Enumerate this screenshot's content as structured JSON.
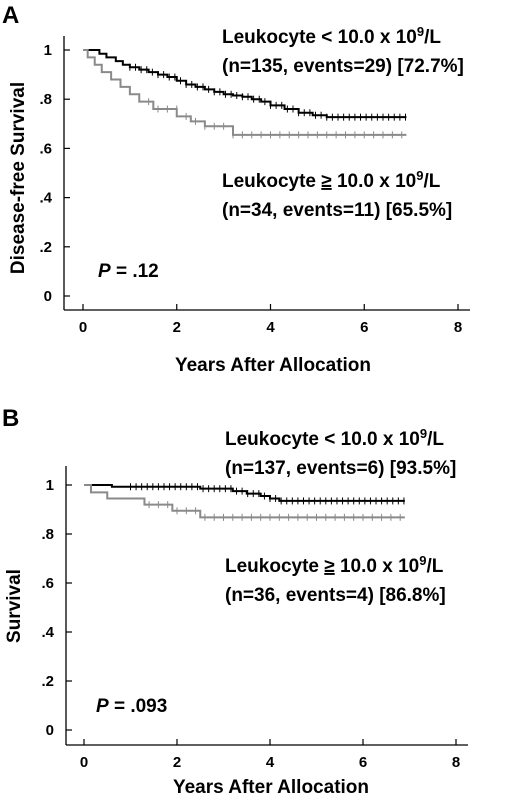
{
  "chart_data": [
    {
      "panel_label": "A",
      "type": "line",
      "step": true,
      "ylabel": "Disease-free Survival",
      "xlabel": "Years After Allocation",
      "xlim": [
        0,
        8
      ],
      "ylim": [
        0,
        1
      ],
      "x_ticks": [
        "0",
        "2",
        "4",
        "6",
        "8"
      ],
      "y_ticks": [
        "0",
        ".2",
        ".4",
        ".6",
        ".8",
        "1"
      ],
      "p_label": "P",
      "p_value": " = .12",
      "series": [
        {
          "label_line1_pre": "Leukocyte < 10.0 x 10",
          "label_sup": "9",
          "label_line1_post": "/L",
          "label_line2": "(n=135, events=29) [72.7%]",
          "color": "#000000",
          "x": [
            0,
            0.35,
            0.5,
            0.7,
            0.85,
            1.0,
            1.2,
            1.4,
            1.6,
            1.8,
            2.0,
            2.2,
            2.4,
            2.6,
            2.8,
            3.0,
            3.2,
            3.4,
            3.6,
            3.8,
            4.0,
            4.3,
            4.6,
            4.9,
            5.2,
            6.9
          ],
          "y": [
            1.0,
            0.985,
            0.97,
            0.955,
            0.94,
            0.93,
            0.92,
            0.91,
            0.9,
            0.89,
            0.875,
            0.86,
            0.85,
            0.84,
            0.83,
            0.82,
            0.815,
            0.81,
            0.8,
            0.79,
            0.775,
            0.76,
            0.745,
            0.735,
            0.727,
            0.727
          ]
        },
        {
          "label_line1_pre": "Leukocyte ",
          "label_geq": "≥",
          "label_line1_mid": " 10.0 x 10",
          "label_sup": "9",
          "label_line1_post": "/L",
          "label_line2": "(n=34, events=11) [65.5%]",
          "color": "#8a8a8a",
          "x": [
            0,
            0.1,
            0.25,
            0.4,
            0.6,
            0.8,
            1.0,
            1.2,
            1.5,
            2.0,
            2.3,
            2.6,
            3.2,
            6.9
          ],
          "y": [
            1.0,
            0.97,
            0.94,
            0.91,
            0.88,
            0.85,
            0.82,
            0.79,
            0.76,
            0.73,
            0.71,
            0.69,
            0.655,
            0.655
          ]
        }
      ]
    },
    {
      "panel_label": "B",
      "type": "line",
      "step": true,
      "ylabel": "Survival",
      "xlabel": "Years After Allocation",
      "xlim": [
        0,
        8
      ],
      "ylim": [
        0,
        1
      ],
      "x_ticks": [
        "0",
        "2",
        "4",
        "6",
        "8"
      ],
      "y_ticks": [
        "0",
        ".2",
        ".4",
        ".6",
        ".8",
        "1"
      ],
      "p_label": "P",
      "p_value": " = .093",
      "series": [
        {
          "label_line1_pre": "Leukocyte < 10.0 x 10",
          "label_sup": "9",
          "label_line1_post": "/L",
          "label_line2": "(n=137, events=6) [93.5%]",
          "color": "#000000",
          "x": [
            0,
            0.6,
            2.5,
            3.2,
            3.5,
            3.8,
            4.0,
            4.2,
            6.9
          ],
          "y": [
            1.0,
            0.993,
            0.985,
            0.975,
            0.965,
            0.955,
            0.945,
            0.935,
            0.935
          ]
        },
        {
          "label_line1_pre": "Leukocyte ",
          "label_geq": "≥",
          "label_line1_mid": " 10.0 x 10",
          "label_sup": "9",
          "label_line1_post": "/L",
          "label_line2": "(n=36, events=4) [86.8%]",
          "color": "#8a8a8a",
          "x": [
            0,
            0.15,
            0.5,
            1.3,
            1.9,
            2.5,
            6.9
          ],
          "y": [
            1.0,
            0.97,
            0.945,
            0.92,
            0.895,
            0.868,
            0.868
          ]
        }
      ]
    }
  ]
}
